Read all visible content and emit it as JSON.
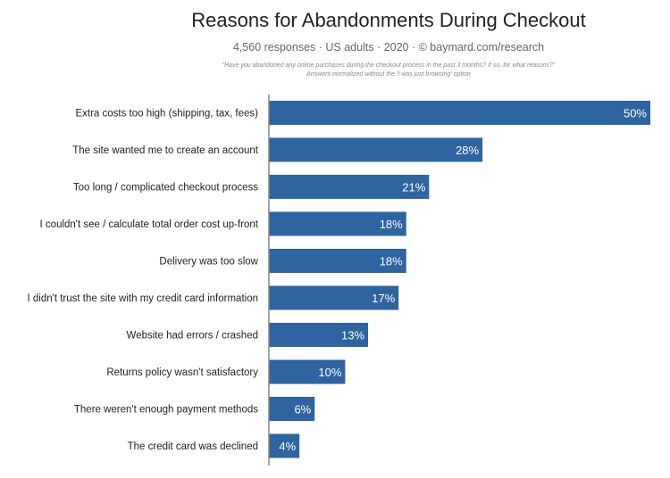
{
  "chart_data": {
    "type": "bar",
    "orientation": "horizontal",
    "title": "Reasons for Abandonments During Checkout",
    "subtitle": "4,560 responses  ·  US adults  ·  2020  ·  ©  baymard.com/research",
    "question": "\"Have you abandoned any online purchases during the checkout process in the past 3 months? If so, for what reasons?\"",
    "note": "Answers normalized without the 'I was just browsing' option",
    "categories": [
      "Extra costs too high (shipping, tax, fees)",
      "The site wanted me to create an account",
      "Too long / complicated checkout process",
      "I couldn't see / calculate total order cost up-front",
      "Delivery was too slow",
      "I didn't trust the site with my credit card information",
      "Website had errors / crashed",
      "Returns policy wasn't satisfactory",
      "There weren't enough payment methods",
      "The credit card was declined"
    ],
    "values": [
      50,
      28,
      21,
      18,
      18,
      17,
      13,
      10,
      6,
      4
    ],
    "value_labels": [
      "50%",
      "28%",
      "21%",
      "18%",
      "18%",
      "17%",
      "13%",
      "10%",
      "6%",
      "4%"
    ],
    "xlim": [
      0,
      50
    ],
    "grid": false,
    "bar_color": "#2e64a0"
  }
}
